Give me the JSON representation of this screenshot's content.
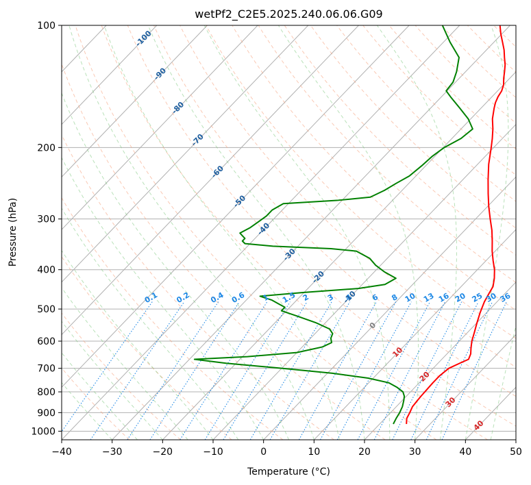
{
  "chart_data": {
    "type": "skew-t",
    "title": "wetPf2_C2E5.2025.240.06.06.G09",
    "xlabel": "Temperature (°C)",
    "ylabel": "Pressure (hPa)",
    "xlim": [
      -40,
      50
    ],
    "ylim": [
      1050,
      100
    ],
    "x_ticks": [
      "−40",
      "−30",
      "−20",
      "−10",
      "0",
      "10",
      "20",
      "30",
      "40",
      "50"
    ],
    "x_tick_values": [
      -40,
      -30,
      -20,
      -10,
      0,
      10,
      20,
      30,
      40,
      50
    ],
    "y_ticks": [
      "100",
      "200",
      "300",
      "400",
      "500",
      "600",
      "700",
      "800",
      "900",
      "1000"
    ],
    "y_tick_values": [
      100,
      200,
      300,
      400,
      500,
      600,
      700,
      800,
      900,
      1000
    ],
    "isotherm_labels": [
      {
        "text": "-100",
        "p": 108,
        "v": -100
      },
      {
        "text": "-90",
        "p": 132,
        "v": -90
      },
      {
        "text": "-80",
        "p": 160,
        "v": -80
      },
      {
        "text": "-70",
        "p": 192,
        "v": -70
      },
      {
        "text": "-60",
        "p": 230,
        "v": -60
      },
      {
        "text": "-50",
        "p": 272,
        "v": -50
      },
      {
        "text": "-40",
        "p": 318,
        "v": -40
      },
      {
        "text": "-30",
        "p": 368,
        "v": -30
      },
      {
        "text": "-20",
        "p": 418,
        "v": -20
      },
      {
        "text": "-10",
        "p": 468,
        "v": -10
      },
      {
        "text": "0",
        "p": 550,
        "v": 0
      },
      {
        "text": "10",
        "p": 640,
        "v": 10
      },
      {
        "text": "20",
        "p": 735,
        "v": 20
      },
      {
        "text": "30",
        "p": 850,
        "v": 30
      },
      {
        "text": "40",
        "p": 970,
        "v": 40
      }
    ],
    "mixing_ratio_labels": [
      {
        "text": "0.1",
        "w": 0.1
      },
      {
        "text": "0.2",
        "w": 0.2
      },
      {
        "text": "0.4",
        "w": 0.4
      },
      {
        "text": "0.6",
        "w": 0.6
      },
      {
        "text": "1",
        "w": 1
      },
      {
        "text": "1.5",
        "w": 1.5
      },
      {
        "text": "2",
        "w": 2
      },
      {
        "text": "3",
        "w": 3
      },
      {
        "text": "4",
        "w": 4
      },
      {
        "text": "6",
        "w": 6
      },
      {
        "text": "8",
        "w": 8
      },
      {
        "text": "10",
        "w": 10
      },
      {
        "text": "13",
        "w": 13
      },
      {
        "text": "16",
        "w": 16
      },
      {
        "text": "20",
        "w": 20
      },
      {
        "text": "25",
        "w": 25
      },
      {
        "text": "30",
        "w": 30
      },
      {
        "text": "36",
        "w": 36
      }
    ],
    "series": [
      {
        "name": "Temperature",
        "color": "#ff0000",
        "points": [
          [
            960,
            25.3
          ],
          [
            930,
            24.3
          ],
          [
            900,
            23.8
          ],
          [
            870,
            23.2
          ],
          [
            840,
            23.0
          ],
          [
            820,
            22.9
          ],
          [
            790,
            22.8
          ],
          [
            760,
            22.7
          ],
          [
            730,
            22.7
          ],
          [
            700,
            23.1
          ],
          [
            680,
            24.3
          ],
          [
            665,
            25.3
          ],
          [
            645,
            24.7
          ],
          [
            625,
            23.7
          ],
          [
            600,
            22.5
          ],
          [
            570,
            21.3
          ],
          [
            540,
            20.0
          ],
          [
            510,
            18.7
          ],
          [
            480,
            17.5
          ],
          [
            460,
            16.9
          ],
          [
            440,
            16.3
          ],
          [
            420,
            15.0
          ],
          [
            400,
            13.4
          ],
          [
            380,
            11.4
          ],
          [
            360,
            9.4
          ],
          [
            340,
            7.5
          ],
          [
            320,
            5.4
          ],
          [
            300,
            2.9
          ],
          [
            280,
            0.3
          ],
          [
            260,
            -2.3
          ],
          [
            240,
            -5.0
          ],
          [
            220,
            -7.8
          ],
          [
            200,
            -10.5
          ],
          [
            190,
            -12.0
          ],
          [
            180,
            -13.7
          ],
          [
            170,
            -15.7
          ],
          [
            160,
            -17.4
          ],
          [
            155,
            -18.2
          ],
          [
            150,
            -18.8
          ],
          [
            145,
            -19.2
          ],
          [
            140,
            -20.0
          ],
          [
            135,
            -21.2
          ],
          [
            130,
            -22.3
          ],
          [
            125,
            -23.5
          ],
          [
            120,
            -25.0
          ],
          [
            115,
            -26.5
          ],
          [
            110,
            -28.3
          ],
          [
            105,
            -30.2
          ],
          [
            100,
            -32.0
          ]
        ]
      },
      {
        "name": "Dewpoint",
        "color": "#008000",
        "points": [
          [
            960,
            22.7
          ],
          [
            930,
            22.2
          ],
          [
            900,
            21.8
          ],
          [
            870,
            21.2
          ],
          [
            840,
            20.3
          ],
          [
            820,
            19.6
          ],
          [
            800,
            18.5
          ],
          [
            780,
            16.5
          ],
          [
            760,
            14.0
          ],
          [
            740,
            9.0
          ],
          [
            720,
            1.0
          ],
          [
            700,
            -10.0
          ],
          [
            680,
            -22.0
          ],
          [
            665,
            -29.0
          ],
          [
            655,
            -19.0
          ],
          [
            640,
            -10.0
          ],
          [
            620,
            -6.0
          ],
          [
            605,
            -5.0
          ],
          [
            590,
            -6.0
          ],
          [
            575,
            -6.5
          ],
          [
            560,
            -8.0
          ],
          [
            540,
            -12.0
          ],
          [
            520,
            -17.0
          ],
          [
            505,
            -21.0
          ],
          [
            495,
            -21.0
          ],
          [
            485,
            -23.0
          ],
          [
            475,
            -25.0
          ],
          [
            465,
            -28.0
          ],
          [
            455,
            -20.0
          ],
          [
            445,
            -10.0
          ],
          [
            435,
            -5.5
          ],
          [
            420,
            -4.5
          ],
          [
            405,
            -8.0
          ],
          [
            390,
            -11.0
          ],
          [
            375,
            -13.5
          ],
          [
            360,
            -17.5
          ],
          [
            355,
            -23.0
          ],
          [
            350,
            -35.0
          ],
          [
            345,
            -41.0
          ],
          [
            340,
            -42.0
          ],
          [
            335,
            -42.0
          ],
          [
            330,
            -43.0
          ],
          [
            325,
            -44.0
          ],
          [
            315,
            -43.0
          ],
          [
            305,
            -42.5
          ],
          [
            295,
            -42.0
          ],
          [
            285,
            -42.0
          ],
          [
            275,
            -41.0
          ],
          [
            270,
            -31.0
          ],
          [
            265,
            -25.0
          ],
          [
            255,
            -23.5
          ],
          [
            245,
            -22.5
          ],
          [
            235,
            -21.3
          ],
          [
            222,
            -20.8
          ],
          [
            210,
            -20.5
          ],
          [
            200,
            -19.8
          ],
          [
            190,
            -18.2
          ],
          [
            180,
            -17.7
          ],
          [
            170,
            -20.5
          ],
          [
            160,
            -24.2
          ],
          [
            150,
            -28.2
          ],
          [
            145,
            -30.2
          ],
          [
            138,
            -30.5
          ],
          [
            130,
            -31.8
          ],
          [
            120,
            -34.0
          ],
          [
            110,
            -38.7
          ],
          [
            100,
            -43.4
          ]
        ]
      }
    ],
    "grid": true
  }
}
